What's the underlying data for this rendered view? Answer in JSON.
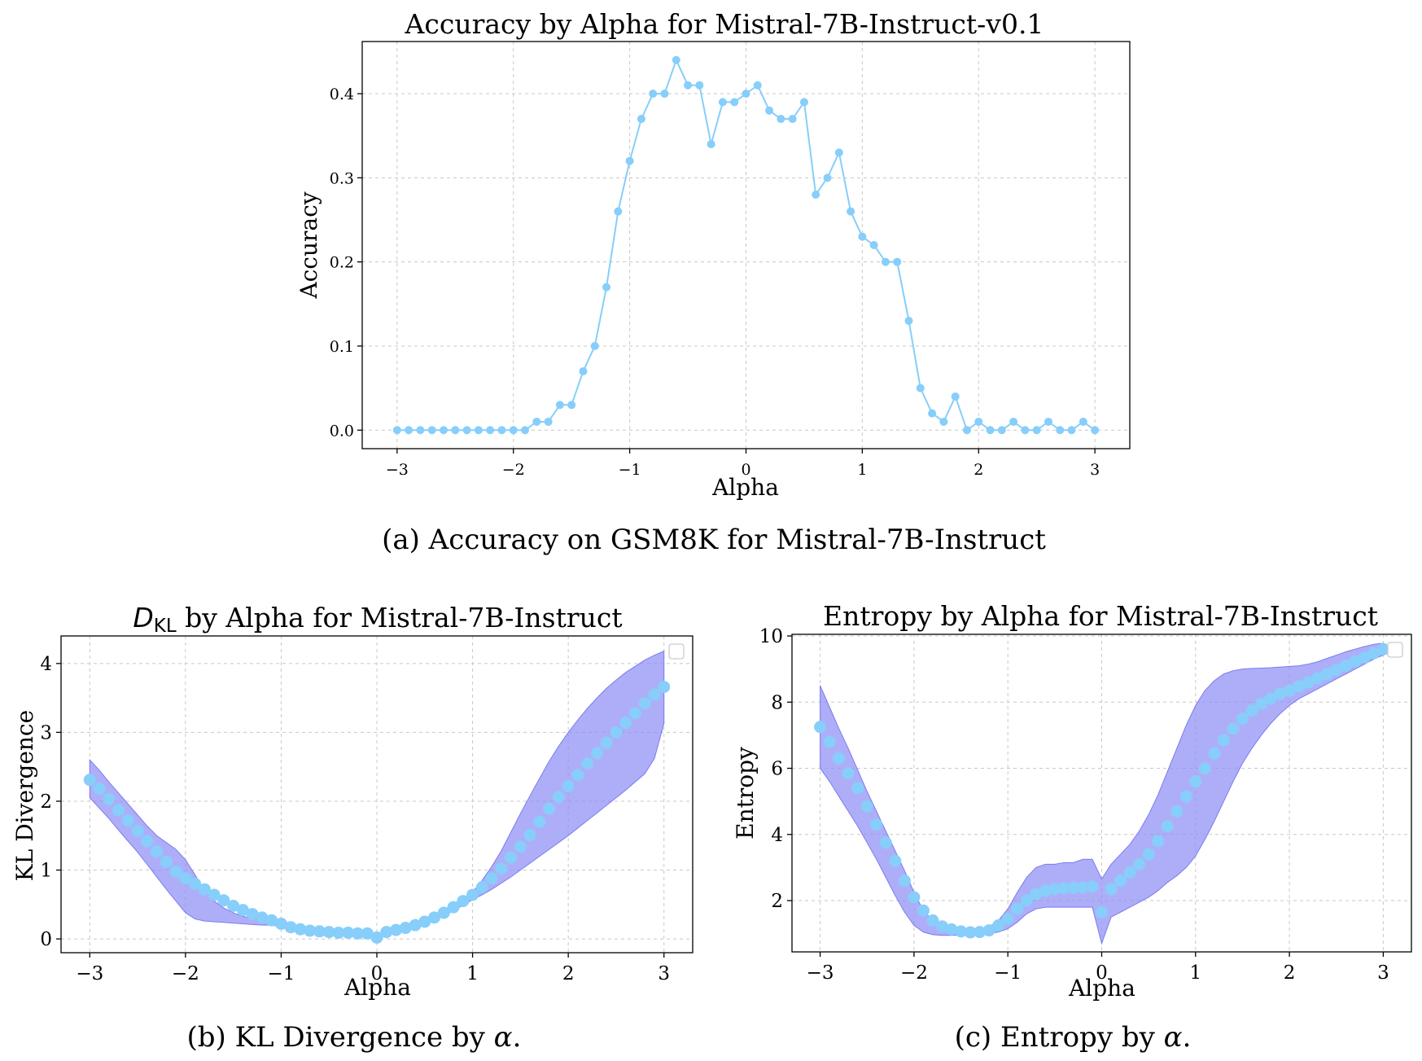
{
  "colors": {
    "series": "#87cefa",
    "band": "#8f8ff5"
  },
  "charts": [
    {
      "title": "Accuracy by Alpha for Mistral-7B-Instruct-v0.1",
      "caption": "(a) Accuracy on GSM8K for Mistral-7B-Instruct",
      "xlabel": "Alpha",
      "ylabel": "Accuracy",
      "xticks": [
        "−3",
        "−2",
        "−1",
        "0",
        "1",
        "2",
        "3"
      ],
      "yticks": [
        "0.0",
        "0.1",
        "0.2",
        "0.3",
        "0.4"
      ]
    },
    {
      "title_main": "D",
      "title_sub": "KL",
      "title_rest": " by Alpha for Mistral-7B-Instruct",
      "caption_main": "(b) KL Divergence by ",
      "caption_var": "α",
      "caption_end": ".",
      "xlabel": "Alpha",
      "ylabel": "KL Divergence",
      "xticks": [
        "−3",
        "−2",
        "−1",
        "0",
        "1",
        "2",
        "3"
      ],
      "yticks": [
        "0",
        "1",
        "2",
        "3",
        "4"
      ]
    },
    {
      "title": "Entropy by Alpha for Mistral-7B-Instruct",
      "caption_main": "(c) Entropy by ",
      "caption_var": "α",
      "caption_end": ".",
      "xlabel": "Alpha",
      "ylabel": "Entropy",
      "xticks": [
        "−3",
        "−2",
        "−1",
        "0",
        "1",
        "2",
        "3"
      ],
      "yticks": [
        "2",
        "4",
        "6",
        "8",
        "10"
      ]
    }
  ],
  "chart_data": [
    {
      "type": "line",
      "xlim": [
        -3.3,
        3.3
      ],
      "ylim": [
        -0.022,
        0.462
      ],
      "x": [
        -3.0,
        -2.9,
        -2.8,
        -2.7,
        -2.6,
        -2.5,
        -2.4,
        -2.3,
        -2.2,
        -2.1,
        -2.0,
        -1.9,
        -1.8,
        -1.7,
        -1.6,
        -1.5,
        -1.4,
        -1.3,
        -1.2,
        -1.1,
        -1.0,
        -0.9,
        -0.8,
        -0.7,
        -0.6,
        -0.5,
        -0.4,
        -0.3,
        -0.2,
        -0.1,
        0.0,
        0.1,
        0.2,
        0.3,
        0.4,
        0.5,
        0.6,
        0.7,
        0.8,
        0.9,
        1.0,
        1.1,
        1.2,
        1.3,
        1.4,
        1.5,
        1.6,
        1.7,
        1.8,
        1.9,
        2.0,
        2.1,
        2.2,
        2.3,
        2.4,
        2.5,
        2.6,
        2.7,
        2.8,
        2.9,
        3.0
      ],
      "series": [
        {
          "values": [
            0,
            0,
            0,
            0,
            0,
            0,
            0,
            0,
            0,
            0,
            0,
            0,
            0.01,
            0.01,
            0.03,
            0.03,
            0.07,
            0.1,
            0.17,
            0.26,
            0.32,
            0.37,
            0.4,
            0.4,
            0.44,
            0.41,
            0.41,
            0.34,
            0.39,
            0.39,
            0.4,
            0.41,
            0.38,
            0.37,
            0.37,
            0.39,
            0.28,
            0.3,
            0.33,
            0.26,
            0.23,
            0.22,
            0.2,
            0.2,
            0.13,
            0.05,
            0.02,
            0.01,
            0.04,
            0,
            0.01,
            0,
            0,
            0.01,
            0,
            0,
            0.01,
            0,
            0,
            0.01,
            0
          ]
        }
      ]
    },
    {
      "type": "line",
      "xlim": [
        -3.3,
        3.3
      ],
      "ylim": [
        -0.2,
        4.4
      ],
      "x": [
        -3.0,
        -2.9,
        -2.8,
        -2.7,
        -2.6,
        -2.5,
        -2.4,
        -2.3,
        -2.2,
        -2.1,
        -2.0,
        -1.9,
        -1.8,
        -1.7,
        -1.6,
        -1.5,
        -1.4,
        -1.3,
        -1.2,
        -1.1,
        -1.0,
        -0.9,
        -0.8,
        -0.7,
        -0.6,
        -0.5,
        -0.4,
        -0.3,
        -0.2,
        -0.1,
        0.0,
        0.1,
        0.2,
        0.3,
        0.4,
        0.5,
        0.6,
        0.7,
        0.8,
        0.9,
        1.0,
        1.1,
        1.2,
        1.3,
        1.4,
        1.5,
        1.6,
        1.7,
        1.8,
        1.9,
        2.0,
        2.1,
        2.2,
        2.3,
        2.4,
        2.5,
        2.6,
        2.7,
        2.8,
        2.9,
        3.0
      ],
      "series": [
        {
          "values": [
            2.31,
            2.18,
            2.03,
            1.87,
            1.72,
            1.57,
            1.42,
            1.27,
            1.12,
            0.98,
            0.88,
            0.8,
            0.72,
            0.64,
            0.56,
            0.48,
            0.42,
            0.36,
            0.31,
            0.27,
            0.22,
            0.17,
            0.14,
            0.12,
            0.11,
            0.1,
            0.09,
            0.09,
            0.08,
            0.08,
            0.02,
            0.1,
            0.13,
            0.16,
            0.2,
            0.25,
            0.31,
            0.38,
            0.46,
            0.55,
            0.64,
            0.75,
            0.88,
            1.02,
            1.18,
            1.34,
            1.51,
            1.7,
            1.89,
            2.06,
            2.22,
            2.38,
            2.55,
            2.7,
            2.85,
            3.0,
            3.14,
            3.28,
            3.42,
            3.55,
            3.66
          ]
        }
      ],
      "band": {
        "upper": [
          2.6,
          2.45,
          2.28,
          2.12,
          1.96,
          1.8,
          1.64,
          1.5,
          1.4,
          1.3,
          1.15,
          0.93,
          0.7,
          0.55,
          0.45,
          0.38,
          0.33,
          0.3,
          0.27,
          0.25,
          0.22,
          0.19,
          0.17,
          0.15,
          0.14,
          0.13,
          0.12,
          0.11,
          0.11,
          0.1,
          0.06,
          0.12,
          0.15,
          0.19,
          0.23,
          0.28,
          0.35,
          0.42,
          0.5,
          0.59,
          0.68,
          0.85,
          1.05,
          1.28,
          1.55,
          1.82,
          2.08,
          2.33,
          2.58,
          2.8,
          3.0,
          3.18,
          3.35,
          3.5,
          3.64,
          3.76,
          3.87,
          3.96,
          4.05,
          4.12,
          4.18
        ],
        "lower": [
          2.05,
          1.9,
          1.75,
          1.58,
          1.42,
          1.26,
          1.08,
          0.9,
          0.72,
          0.55,
          0.38,
          0.29,
          0.26,
          0.25,
          0.24,
          0.23,
          0.22,
          0.21,
          0.2,
          0.2,
          0.18,
          0.14,
          0.11,
          0.09,
          0.08,
          0.07,
          0.06,
          0.06,
          0.05,
          0.05,
          0.0,
          0.08,
          0.11,
          0.14,
          0.17,
          0.22,
          0.28,
          0.34,
          0.41,
          0.49,
          0.57,
          0.64,
          0.72,
          0.81,
          0.9,
          1.0,
          1.1,
          1.2,
          1.3,
          1.4,
          1.5,
          1.61,
          1.72,
          1.83,
          1.94,
          2.05,
          2.16,
          2.28,
          2.4,
          2.62,
          3.13
        ]
      }
    },
    {
      "type": "line",
      "xlim": [
        -3.3,
        3.3
      ],
      "ylim": [
        0.45,
        10.05
      ],
      "x": [
        -3.0,
        -2.9,
        -2.8,
        -2.7,
        -2.6,
        -2.5,
        -2.4,
        -2.3,
        -2.2,
        -2.1,
        -2.0,
        -1.9,
        -1.8,
        -1.7,
        -1.6,
        -1.5,
        -1.4,
        -1.3,
        -1.2,
        -1.1,
        -1.0,
        -0.9,
        -0.8,
        -0.7,
        -0.6,
        -0.5,
        -0.4,
        -0.3,
        -0.2,
        -0.1,
        0.0,
        0.1,
        0.2,
        0.3,
        0.4,
        0.5,
        0.6,
        0.7,
        0.8,
        0.9,
        1.0,
        1.1,
        1.2,
        1.3,
        1.4,
        1.5,
        1.6,
        1.7,
        1.8,
        1.9,
        2.0,
        2.1,
        2.2,
        2.3,
        2.4,
        2.5,
        2.6,
        2.7,
        2.8,
        2.9,
        3.0
      ],
      "series": [
        {
          "values": [
            7.25,
            6.8,
            6.3,
            5.85,
            5.4,
            4.85,
            4.3,
            3.75,
            3.2,
            2.6,
            2.1,
            1.7,
            1.4,
            1.22,
            1.13,
            1.07,
            1.04,
            1.05,
            1.1,
            1.25,
            1.45,
            1.75,
            2.0,
            2.2,
            2.3,
            2.35,
            2.38,
            2.39,
            2.4,
            2.42,
            1.65,
            2.35,
            2.6,
            2.85,
            3.1,
            3.4,
            3.8,
            4.25,
            4.7,
            5.15,
            5.6,
            6.0,
            6.45,
            6.85,
            7.2,
            7.5,
            7.75,
            7.95,
            8.1,
            8.25,
            8.35,
            8.48,
            8.6,
            8.72,
            8.85,
            8.97,
            9.1,
            9.23,
            9.35,
            9.48,
            9.6
          ]
        }
      ],
      "band": {
        "upper": [
          8.5,
          7.85,
          7.2,
          6.6,
          5.95,
          5.3,
          4.7,
          4.1,
          3.5,
          2.9,
          2.25,
          1.7,
          1.4,
          1.25,
          1.18,
          1.13,
          1.12,
          1.15,
          1.2,
          1.4,
          1.75,
          2.25,
          2.7,
          3.0,
          3.1,
          3.1,
          3.15,
          3.15,
          3.25,
          3.25,
          2.65,
          3.1,
          3.4,
          3.7,
          4.1,
          4.6,
          5.2,
          5.9,
          6.6,
          7.3,
          7.9,
          8.35,
          8.65,
          8.85,
          8.95,
          9.0,
          9.02,
          9.03,
          9.04,
          9.06,
          9.08,
          9.1,
          9.15,
          9.22,
          9.32,
          9.42,
          9.52,
          9.6,
          9.68,
          9.75,
          9.78
        ],
        "lower": [
          6.0,
          5.6,
          5.15,
          4.7,
          4.25,
          3.75,
          3.25,
          2.7,
          2.15,
          1.65,
          1.25,
          1.05,
          0.97,
          0.95,
          0.95,
          0.96,
          0.97,
          0.99,
          1.01,
          1.05,
          1.15,
          1.35,
          1.6,
          1.75,
          1.8,
          1.8,
          1.8,
          1.8,
          1.8,
          1.8,
          0.7,
          1.5,
          1.65,
          1.8,
          1.95,
          2.1,
          2.3,
          2.55,
          2.75,
          3.0,
          3.35,
          3.85,
          4.4,
          5.0,
          5.6,
          6.15,
          6.6,
          7.0,
          7.35,
          7.65,
          7.9,
          8.1,
          8.25,
          8.4,
          8.55,
          8.7,
          8.85,
          9.0,
          9.15,
          9.3,
          9.42
        ]
      }
    }
  ]
}
